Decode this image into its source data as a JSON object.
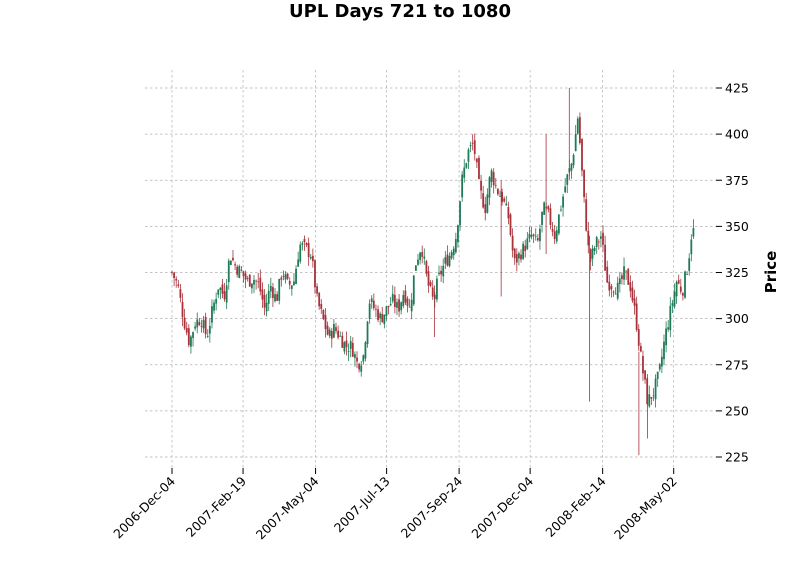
{
  "chart_data": {
    "type": "candlestick",
    "title": "UPL Days 721 to 1080",
    "ylabel": "Price",
    "xlabel": "",
    "ylim": [
      217,
      425
    ],
    "x_range_days": [
      0,
      360
    ],
    "y_ticks": [
      225,
      250,
      275,
      300,
      325,
      350,
      375,
      400,
      425
    ],
    "x_ticks": [
      {
        "label": "2006-Dec-04",
        "day": 0
      },
      {
        "label": "2007-Feb-19",
        "day": 49
      },
      {
        "label": "2007-May-04",
        "day": 99
      },
      {
        "label": "2007-Jul-13",
        "day": 148
      },
      {
        "label": "2007-Sep-24",
        "day": 198
      },
      {
        "label": "2007-Dec-04",
        "day": 247
      },
      {
        "label": "2008-Feb-14",
        "day": 297
      },
      {
        "label": "2008-May-02",
        "day": 346
      }
    ],
    "up_color": "#1f7a55",
    "down_color": "#a8323a",
    "close_path": [
      [
        0,
        325
      ],
      [
        4,
        318
      ],
      [
        8,
        300
      ],
      [
        12,
        287
      ],
      [
        16,
        298
      ],
      [
        20,
        300
      ],
      [
        24,
        290
      ],
      [
        28,
        305
      ],
      [
        32,
        318
      ],
      [
        36,
        312
      ],
      [
        40,
        335
      ],
      [
        44,
        328
      ],
      [
        48,
        325
      ],
      [
        52,
        320
      ],
      [
        56,
        322
      ],
      [
        60,
        318
      ],
      [
        64,
        305
      ],
      [
        68,
        318
      ],
      [
        72,
        310
      ],
      [
        76,
        326
      ],
      [
        80,
        318
      ],
      [
        84,
        320
      ],
      [
        88,
        340
      ],
      [
        92,
        338
      ],
      [
        96,
        335
      ],
      [
        100,
        310
      ],
      [
        104,
        300
      ],
      [
        108,
        290
      ],
      [
        112,
        295
      ],
      [
        116,
        290
      ],
      [
        120,
        285
      ],
      [
        124,
        285
      ],
      [
        128,
        275
      ],
      [
        132,
        280
      ],
      [
        136,
        310
      ],
      [
        140,
        305
      ],
      [
        144,
        300
      ],
      [
        148,
        305
      ],
      [
        152,
        310
      ],
      [
        156,
        305
      ],
      [
        160,
        315
      ],
      [
        164,
        305
      ],
      [
        168,
        330
      ],
      [
        172,
        340
      ],
      [
        176,
        320
      ],
      [
        180,
        310
      ],
      [
        184,
        322
      ],
      [
        188,
        330
      ],
      [
        192,
        335
      ],
      [
        196,
        345
      ],
      [
        200,
        375
      ],
      [
        204,
        390
      ],
      [
        208,
        395
      ],
      [
        212,
        370
      ],
      [
        216,
        360
      ],
      [
        220,
        380
      ],
      [
        224,
        370
      ],
      [
        228,
        365
      ],
      [
        232,
        355
      ],
      [
        236,
        330
      ],
      [
        240,
        335
      ],
      [
        244,
        340
      ],
      [
        248,
        345
      ],
      [
        252,
        340
      ],
      [
        256,
        360
      ],
      [
        260,
        355
      ],
      [
        264,
        345
      ],
      [
        268,
        360
      ],
      [
        272,
        375
      ],
      [
        276,
        385
      ],
      [
        280,
        410
      ],
      [
        284,
        365
      ],
      [
        288,
        330
      ],
      [
        292,
        340
      ],
      [
        296,
        345
      ],
      [
        300,
        320
      ],
      [
        304,
        318
      ],
      [
        308,
        316
      ],
      [
        312,
        325
      ],
      [
        316,
        318
      ],
      [
        320,
        300
      ],
      [
        324,
        275
      ],
      [
        328,
        255
      ],
      [
        332,
        260
      ],
      [
        336,
        270
      ],
      [
        340,
        290
      ],
      [
        344,
        305
      ],
      [
        348,
        320
      ],
      [
        352,
        315
      ],
      [
        356,
        330
      ],
      [
        358,
        345
      ],
      [
        360,
        348
      ]
    ]
  }
}
